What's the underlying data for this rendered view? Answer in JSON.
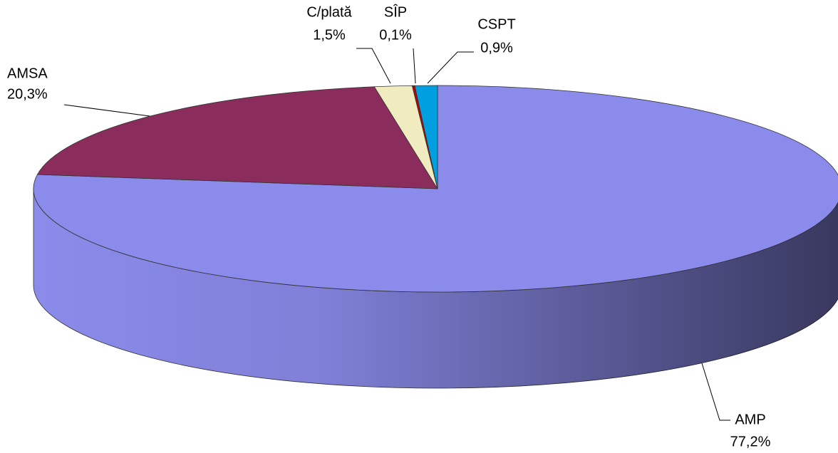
{
  "chart_data": {
    "type": "pie",
    "categories": [
      "AMP",
      "AMSA",
      "C/plată",
      "SÎP",
      "CSPT"
    ],
    "values": [
      77.2,
      20.3,
      1.5,
      0.1,
      0.9
    ],
    "value_labels": [
      "77,2%",
      "20,3%",
      "1,5%",
      "0,1%",
      "0,9%"
    ],
    "colors": [
      "#8b8beb",
      "#8b2d5c",
      "#f0ecc0",
      "#c00000",
      "#00a0e0"
    ]
  }
}
